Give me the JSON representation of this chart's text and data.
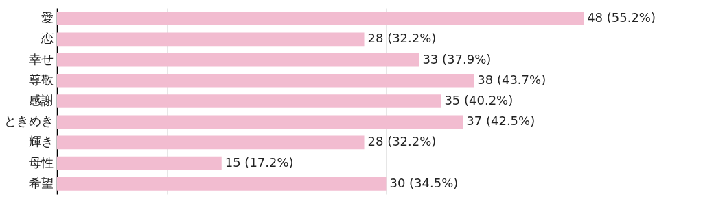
{
  "chart_data": {
    "type": "bar",
    "orientation": "horizontal",
    "categories": [
      "愛",
      "恋",
      "幸せ",
      "尊敬",
      "感謝",
      "ときめき",
      "輝き",
      "母性",
      "希望"
    ],
    "values": [
      48,
      28,
      33,
      38,
      35,
      37,
      28,
      15,
      30
    ],
    "value_labels": [
      "48 (55.2%)",
      "28 (32.2%)",
      "33 (37.9%)",
      "38 (43.7%)",
      "35 (40.2%)",
      "37 (42.5%)",
      "28 (32.2%)",
      "15 (17.2%)",
      "30 (34.5%)"
    ],
    "color": "#f2bcd0",
    "xlim": [
      0,
      56
    ],
    "xticks": [
      {
        "value": 0,
        "label": null
      },
      {
        "value": 10,
        "label": null
      },
      {
        "value": 20,
        "label": null
      },
      {
        "value": 30,
        "label": null
      },
      {
        "value": 40,
        "label": null
      },
      {
        "value": 50,
        "label": null
      }
    ],
    "grid": "x",
    "tick_labels": "y"
  }
}
